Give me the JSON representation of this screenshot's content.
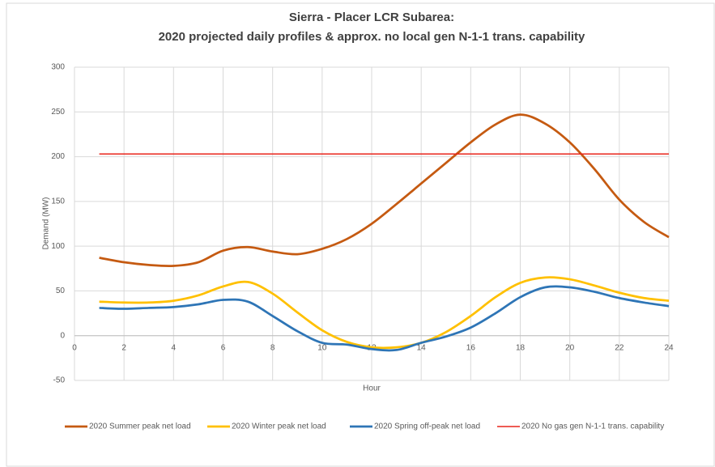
{
  "chart_data": {
    "type": "line",
    "title": "Sierra - Placer LCR Subarea:",
    "subtitle": "2020 projected daily profiles & approx. no local gen N-1-1 trans. capability",
    "x_label": "Hour",
    "y_label": "Demand (MW)",
    "x": [
      1,
      2,
      3,
      4,
      5,
      6,
      7,
      8,
      9,
      10,
      11,
      12,
      13,
      14,
      15,
      16,
      17,
      18,
      19,
      20,
      21,
      22,
      23,
      24
    ],
    "series": [
      {
        "name": "2020 Summer peak net load",
        "color": "#c55a11",
        "values": [
          87,
          82,
          79,
          78,
          82,
          95,
          99,
          94,
          91,
          97,
          108,
          125,
          147,
          170,
          193,
          216,
          236,
          247,
          237,
          216,
          186,
          152,
          127,
          110
        ]
      },
      {
        "name": "2020 Winter peak net load",
        "color": "#ffc000",
        "values": [
          38,
          37,
          37,
          39,
          45,
          55,
          60,
          47,
          26,
          6,
          -7,
          -13,
          -13,
          -8,
          4,
          22,
          43,
          59,
          65,
          63,
          56,
          48,
          42,
          39
        ]
      },
      {
        "name": "2020 Spring off-peak net load",
        "color": "#2e75b6",
        "values": [
          31,
          30,
          31,
          32,
          35,
          40,
          38,
          22,
          5,
          -8,
          -10,
          -15,
          -16,
          -8,
          -1,
          9,
          25,
          43,
          54,
          54,
          49,
          42,
          37,
          33
        ]
      },
      {
        "name": "2020 No gas gen N-1-1 trans. capability",
        "color": "#e8251b",
        "values": [
          203,
          203,
          203,
          203,
          203,
          203,
          203,
          203,
          203,
          203,
          203,
          203,
          203,
          203,
          203,
          203,
          203,
          203,
          203,
          203,
          203,
          203,
          203,
          203
        ]
      }
    ],
    "xlim": [
      0,
      24
    ],
    "xticks": [
      0,
      2,
      4,
      6,
      8,
      10,
      12,
      14,
      16,
      18,
      20,
      22,
      24
    ],
    "ylim": [
      -50,
      300
    ],
    "yticks": [
      -50,
      0,
      50,
      100,
      150,
      200,
      250,
      300
    ],
    "grid": true,
    "legend": "bottom"
  }
}
